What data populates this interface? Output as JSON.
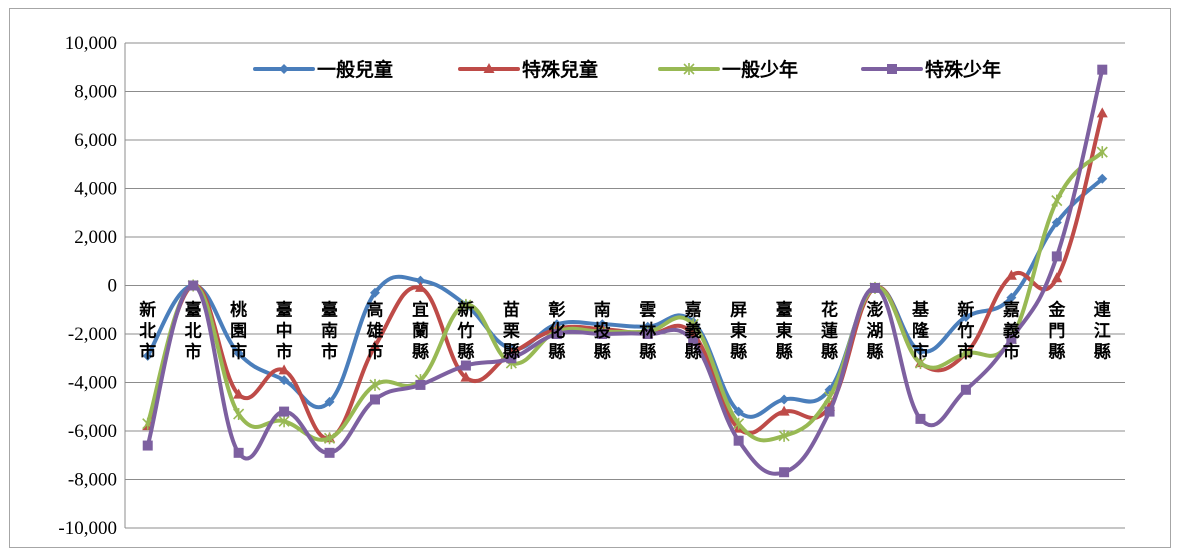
{
  "chart_data": {
    "type": "line",
    "smooth": true,
    "categories": [
      "新北市",
      "臺北市",
      "桃園市",
      "臺中市",
      "臺南市",
      "高雄市",
      "宜蘭縣",
      "新竹縣",
      "苗栗縣",
      "彰化縣",
      "南投縣",
      "雲林縣",
      "嘉義縣",
      "屏東縣",
      "臺東縣",
      "花蓮縣",
      "澎湖縣",
      "基隆市",
      "新竹市",
      "嘉義市",
      "金門縣",
      "連江縣"
    ],
    "ylim": [
      -10000,
      10000
    ],
    "yticks": [
      -10000,
      -8000,
      -6000,
      -4000,
      -2000,
      0,
      2000,
      4000,
      6000,
      8000,
      10000
    ],
    "ytick_labels": [
      "-10,000",
      "-8,000",
      "-6,000",
      "-4,000",
      "-2,000",
      "0",
      "2,000",
      "4,000",
      "6,000",
      "8,000",
      "10,000"
    ],
    "grid": true,
    "legend_position": "top",
    "series": [
      {
        "name": "一般兒童",
        "color": "#4a7ebb",
        "marker": "diamond",
        "values": [
          -2900,
          0,
          -2800,
          -3900,
          -4800,
          -300,
          200,
          -800,
          -2600,
          -1600,
          -1600,
          -1700,
          -1500,
          -5200,
          -4700,
          -4300,
          -100,
          -2700,
          -1300,
          -500,
          2600,
          4400
        ]
      },
      {
        "name": "特殊兒童",
        "color": "#be4b48",
        "marker": "triangle",
        "values": [
          -5800,
          0,
          -4500,
          -3500,
          -6300,
          -2500,
          -100,
          -3800,
          -2800,
          -1800,
          -1800,
          -2000,
          -2000,
          -5900,
          -5200,
          -5000,
          -100,
          -3200,
          -2800,
          400,
          300,
          7100
        ]
      },
      {
        "name": "一般少年",
        "color": "#98b954",
        "marker": "star",
        "values": [
          -5700,
          0,
          -5300,
          -5600,
          -6300,
          -4100,
          -3900,
          -800,
          -3200,
          -1900,
          -1900,
          -1900,
          -1600,
          -5700,
          -6200,
          -4600,
          -100,
          -3200,
          -2800,
          -2200,
          3500,
          5500
        ]
      },
      {
        "name": "特殊少年",
        "color": "#7d60a0",
        "marker": "square",
        "values": [
          -6600,
          0,
          -6900,
          -5200,
          -6900,
          -4700,
          -4100,
          -3300,
          -3000,
          -2000,
          -2000,
          -2000,
          -2300,
          -6400,
          -7700,
          -5200,
          -100,
          -5500,
          -4300,
          -2200,
          1200,
          8900
        ]
      }
    ]
  }
}
